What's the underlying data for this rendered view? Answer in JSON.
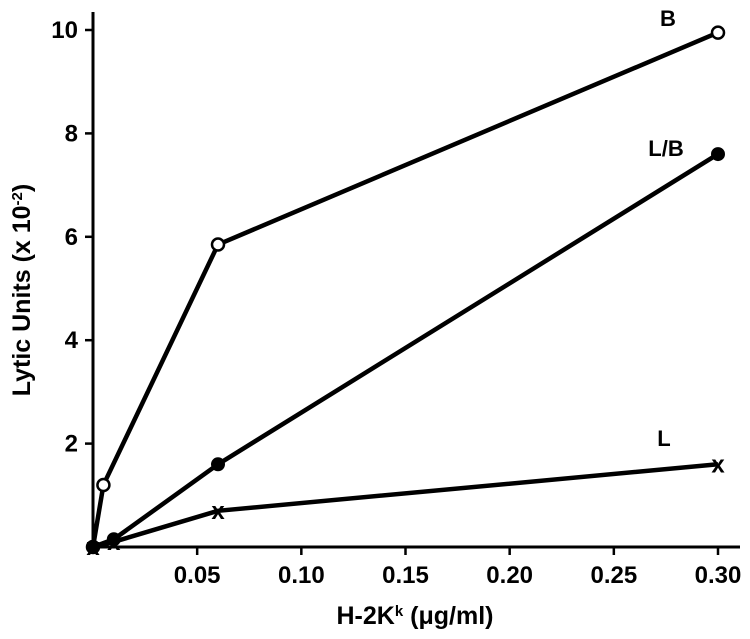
{
  "chart_data": {
    "type": "line",
    "title": "",
    "xlabel": "H-2K",
    "xlabel_sup": "k",
    "xlabel_unit": " (μg/ml)",
    "ylabel": "Lytic Units (x 10",
    "ylabel_sup": "-2",
    "ylabel_end": ")",
    "xlim": [
      0,
      0.31
    ],
    "ylim": [
      0,
      10.4
    ],
    "xticks": [
      0.05,
      0.1,
      0.15,
      0.2,
      0.25,
      0.3
    ],
    "xtick_labels": [
      "0.05",
      "0.10",
      "0.15",
      "0.20",
      "0.25",
      "0.30"
    ],
    "yticks": [
      2,
      4,
      6,
      8,
      10
    ],
    "ytick_labels": [
      "2",
      "4",
      "6",
      "8",
      "10"
    ],
    "grid": false,
    "legend": "none",
    "series": [
      {
        "name": "B",
        "marker": "open-circle",
        "x": [
          0,
          0.005,
          0.06,
          0.3
        ],
        "y": [
          0,
          1.2,
          5.85,
          9.95
        ]
      },
      {
        "name": "L/B",
        "marker": "filled-circle",
        "x": [
          0,
          0.01,
          0.06,
          0.3
        ],
        "y": [
          0,
          0.15,
          1.6,
          7.6
        ]
      },
      {
        "name": "L",
        "marker": "x",
        "marker_glyph": "x",
        "x": [
          0,
          0.01,
          0.06,
          0.3
        ],
        "y": [
          0,
          0.1,
          0.7,
          1.6
        ]
      }
    ]
  }
}
